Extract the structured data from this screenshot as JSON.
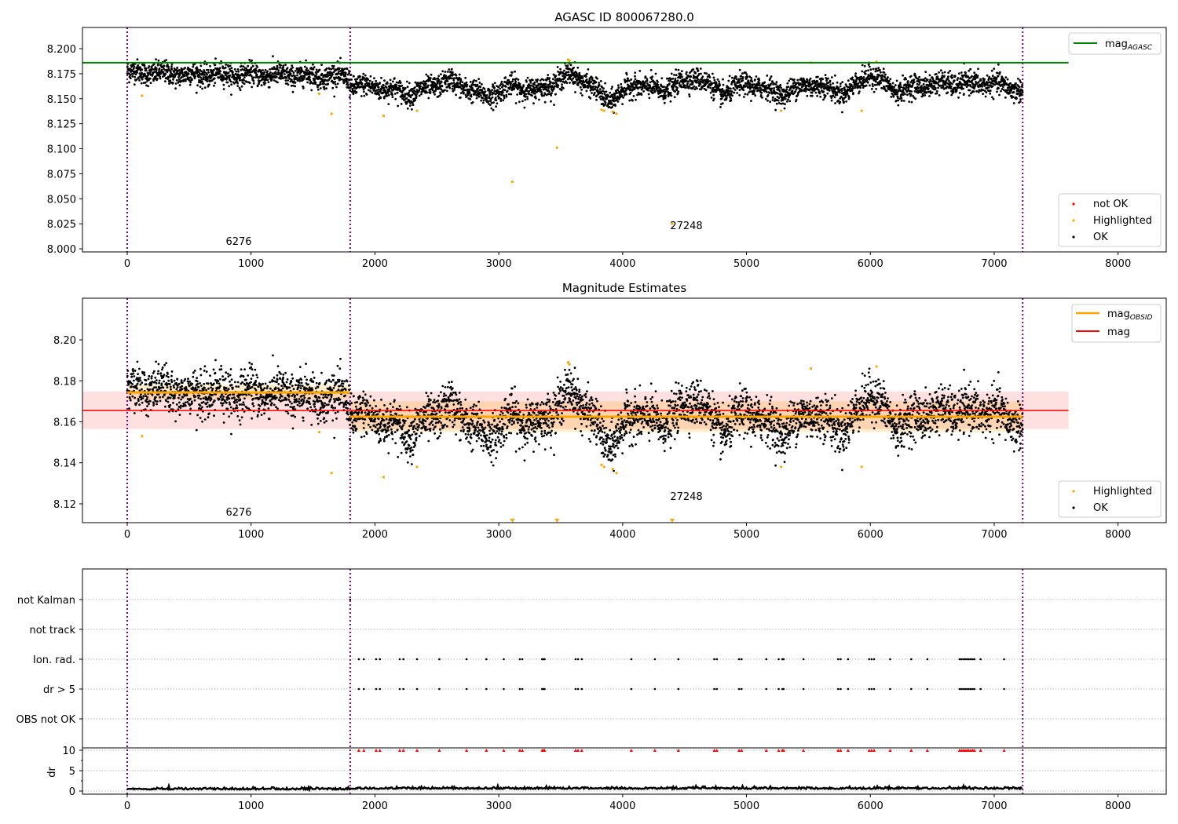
{
  "chart_data": [
    {
      "type": "scatter",
      "title": "AGASC ID 800067280.0",
      "xlim": [
        -361,
        8389
      ],
      "ylim": [
        7.9969,
        8.2212
      ],
      "xticks": [
        0,
        1000,
        2000,
        3000,
        4000,
        5000,
        6000,
        7000,
        8000
      ],
      "yticks": [
        "8.000",
        "8.025",
        "8.050",
        "8.075",
        "8.100",
        "8.125",
        "8.150",
        "8.175",
        "8.200"
      ],
      "legend_line": {
        "label": "mag",
        "sub": "AGASC",
        "color": "#008000",
        "value": 8.186,
        "x_range": [
          -361,
          7600
        ]
      },
      "legend_points": [
        {
          "label": "not OK",
          "color": "#ff0000"
        },
        {
          "label": "Highlighted",
          "color": "#ffa500"
        },
        {
          "label": "OK",
          "color": "#000000"
        }
      ],
      "annotations": [
        {
          "text": "6276",
          "x": 900,
          "y": 8.005
        },
        {
          "text": "27248",
          "x": 4500,
          "y": 8.021
        }
      ]
    },
    {
      "type": "scatter",
      "title": "Magnitude Estimates",
      "xlim": [
        -361,
        8389
      ],
      "ylim": [
        8.1108,
        8.2203
      ],
      "xticks": [
        0,
        1000,
        2000,
        3000,
        4000,
        5000,
        6000,
        7000,
        8000
      ],
      "yticks": [
        "8.12",
        "8.14",
        "8.16",
        "8.18",
        "8.20"
      ],
      "mag": {
        "label": "mag",
        "color": "#ff0000",
        "value": 8.1655,
        "band": [
          8.1565,
          8.1748
        ]
      },
      "mag_obsid": {
        "label": "mag",
        "sub": "OBSID",
        "color": "#ffa500",
        "segments": [
          {
            "x": [
              0,
              1800
            ],
            "value": 8.1743,
            "band": [
              8.171,
              8.178
            ]
          },
          {
            "x": [
              1800,
              7230
            ],
            "value": 8.1625,
            "band": [
              8.155,
              8.17
            ]
          }
        ]
      },
      "legend_points": [
        {
          "label": "Highlighted",
          "color": "#ffa500"
        },
        {
          "label": "OK",
          "color": "#000000"
        }
      ],
      "annotations": [
        {
          "text": "6276",
          "x": 900,
          "y": 8.1148
        },
        {
          "text": "27248",
          "x": 4500,
          "y": 8.1235
        }
      ]
    },
    {
      "type": "scatter",
      "categories": [
        "not Kalman",
        "not track",
        "Ion. rad.",
        "dr > 5",
        "OBS not OK"
      ],
      "xticks": [
        0,
        1000,
        2000,
        3000,
        4000,
        5000,
        6000,
        7000,
        8000
      ],
      "dr_ylabel": "dr",
      "dr_yticks": [
        "0",
        "5",
        "10"
      ],
      "dr_ylim": [
        -0.77,
        10.58
      ],
      "flag_times": [
        1870,
        1910,
        2010,
        2040,
        2200,
        2230,
        2340,
        2520,
        2740,
        2900,
        3040,
        3170,
        3190,
        3350,
        3360,
        3370,
        3620,
        3640,
        3670,
        4070,
        4260,
        4450,
        4740,
        4760,
        4940,
        4960,
        5160,
        5260,
        5290,
        5300,
        5460,
        5740,
        5760,
        5820,
        5990,
        6010,
        6030,
        6160,
        6330,
        6460,
        6720,
        6735,
        6750,
        6765,
        6780,
        6795,
        6810,
        6825,
        6840,
        6890,
        7080
      ],
      "not_kalman_times": [
        1800
      ]
    }
  ],
  "observations": {
    "boundaries": [
      0,
      1800,
      7230
    ],
    "color": "#800080"
  },
  "series_model": {
    "trend_knots": [
      [
        0,
        8.177
      ],
      [
        500,
        8.174
      ],
      [
        1000,
        8.174
      ],
      [
        1500,
        8.173
      ],
      [
        1790,
        8.172
      ],
      [
        1800,
        8.163
      ],
      [
        2000,
        8.162
      ],
      [
        2300,
        8.155
      ],
      [
        2600,
        8.168
      ],
      [
        2900,
        8.152
      ],
      [
        3100,
        8.163
      ],
      [
        3300,
        8.158
      ],
      [
        3600,
        8.175
      ],
      [
        3900,
        8.148
      ],
      [
        4100,
        8.165
      ],
      [
        4300,
        8.158
      ],
      [
        4600,
        8.172
      ],
      [
        4800,
        8.155
      ],
      [
        5000,
        8.165
      ],
      [
        5300,
        8.155
      ],
      [
        5500,
        8.165
      ],
      [
        5800,
        8.156
      ],
      [
        6000,
        8.175
      ],
      [
        6200,
        8.158
      ],
      [
        6500,
        8.165
      ],
      [
        7000,
        8.165
      ],
      [
        7230,
        8.158
      ]
    ],
    "noise": 0.0055,
    "highlighted": [
      [
        120,
        8.153
      ],
      [
        1550,
        8.155
      ],
      [
        1650,
        8.135
      ],
      [
        2070,
        8.133
      ],
      [
        2340,
        8.138
      ],
      [
        3110,
        8.067
      ],
      [
        3470,
        8.101
      ],
      [
        3560,
        8.189
      ],
      [
        3570,
        8.188
      ],
      [
        3830,
        8.139
      ],
      [
        3850,
        8.138
      ],
      [
        3920,
        8.137
      ],
      [
        3950,
        8.135
      ],
      [
        4400,
        8.025
      ],
      [
        5280,
        8.138
      ],
      [
        5520,
        8.186
      ],
      [
        5930,
        8.138
      ],
      [
        6050,
        8.187
      ]
    ]
  }
}
